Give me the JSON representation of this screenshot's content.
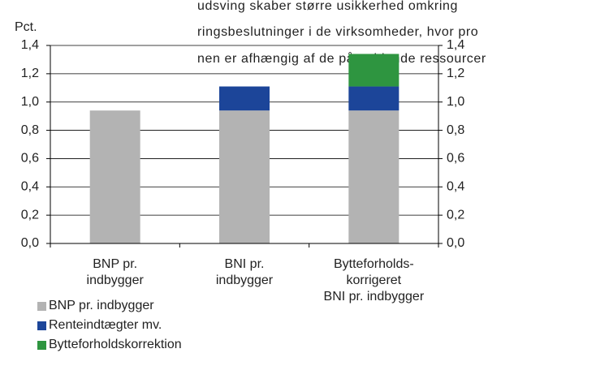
{
  "chart_data": {
    "type": "bar",
    "stacked": true,
    "ylabel": "Pct.",
    "annotations": [
      "udsving skaber større usikkerhed omkring",
      "ringsbeslutninger i de virksomheder, hvor pro",
      "nen er afhængig af de pågældende ressourcer"
    ],
    "categories": [
      "BNP pr.\nindbygger",
      "BNI pr.\nindbygger",
      "Bytteforholds-\nkorrigeret\nBNI pr. indbygger"
    ],
    "series": [
      {
        "name": "BNP pr. indbygger",
        "color": "#b3b3b3",
        "values": [
          0.94,
          0.94,
          0.94
        ]
      },
      {
        "name": "Renteindtægter mv.",
        "color": "#1c4599",
        "values": [
          null,
          0.17,
          0.17
        ]
      },
      {
        "name": "Bytteforholdskorrektion",
        "color": "#2e9540",
        "values": [
          null,
          null,
          0.23
        ]
      }
    ],
    "ylim": [
      0,
      1.4
    ],
    "yticks": [
      {
        "value": 0,
        "label": "0,0"
      },
      {
        "value": 0.2,
        "label": "0,2"
      },
      {
        "value": 0.4,
        "label": "0,4"
      },
      {
        "value": 0.6,
        "label": "0,6"
      },
      {
        "value": 0.8,
        "label": "0,8"
      },
      {
        "value": 1.0,
        "label": "1,0"
      },
      {
        "value": 1.2,
        "label": "1,2"
      },
      {
        "value": 1.4,
        "label": "1,4"
      }
    ],
    "y2lim": [
      0,
      1.4
    ],
    "y2ticks": [
      {
        "value": 0,
        "label": "0,0"
      },
      {
        "value": 0.2,
        "label": "0,2"
      },
      {
        "value": 0.4,
        "label": "0,4"
      },
      {
        "value": 0.6,
        "label": "0,6"
      },
      {
        "value": 0.8,
        "label": "0,8"
      },
      {
        "value": 1.0,
        "label": "1,0"
      },
      {
        "value": 1.2,
        "label": "1,2"
      },
      {
        "value": 1.4,
        "label": "1,4"
      }
    ],
    "grid": true,
    "legend": "bottom-left"
  }
}
